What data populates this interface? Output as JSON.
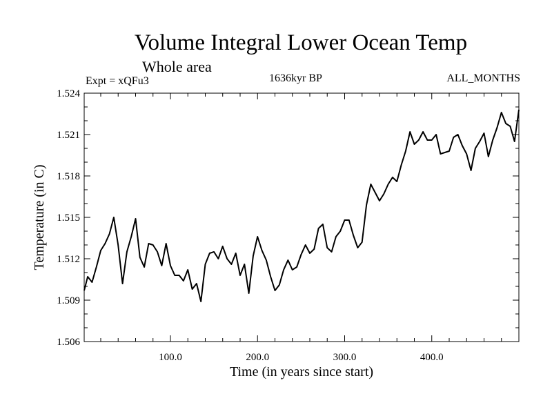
{
  "chart_data": {
    "type": "line",
    "title": "Volume Integral Lower Ocean Temp",
    "subtitle": "Whole area",
    "annotations": {
      "left": "Expt = xQFu3",
      "center": "1636kyr BP",
      "right": "ALL_MONTHS"
    },
    "xlabel": "Time (in years since start)",
    "ylabel": "Temperature (in C)",
    "xlim": [
      1,
      500
    ],
    "ylim": [
      1.506,
      1.524
    ],
    "xticks": [
      100,
      200,
      300,
      400
    ],
    "xtick_labels": [
      "100.0",
      "200.0",
      "300.0",
      "400.0"
    ],
    "yticks": [
      1.506,
      1.509,
      1.512,
      1.515,
      1.518,
      1.521,
      1.524
    ],
    "ytick_labels": [
      "1.506",
      "1.509",
      "1.512",
      "1.515",
      "1.518",
      "1.521",
      "1.524"
    ],
    "line_color": "#000000",
    "series": [
      {
        "name": "Volume Integral Lower Ocean Temp",
        "x": [
          1,
          5,
          10,
          15,
          20,
          25,
          30,
          35,
          40,
          45,
          50,
          55,
          60,
          65,
          70,
          75,
          80,
          85,
          90,
          95,
          100,
          105,
          110,
          115,
          120,
          125,
          130,
          135,
          140,
          145,
          150,
          155,
          160,
          165,
          170,
          175,
          180,
          185,
          190,
          195,
          200,
          205,
          210,
          215,
          220,
          225,
          230,
          235,
          240,
          245,
          250,
          255,
          260,
          265,
          270,
          275,
          280,
          285,
          290,
          295,
          300,
          305,
          310,
          315,
          320,
          325,
          330,
          335,
          340,
          345,
          350,
          355,
          360,
          365,
          370,
          375,
          380,
          385,
          390,
          395,
          400,
          405,
          410,
          415,
          420,
          425,
          430,
          435,
          440,
          445,
          450,
          455,
          460,
          465,
          470,
          475,
          480,
          485,
          490,
          495,
          500
        ],
        "values": [
          1.5097,
          1.5107,
          1.5103,
          1.5114,
          1.5126,
          1.5131,
          1.5138,
          1.515,
          1.513,
          1.5102,
          1.5125,
          1.5136,
          1.5149,
          1.5121,
          1.5114,
          1.5131,
          1.513,
          1.5125,
          1.5115,
          1.5131,
          1.5115,
          1.5108,
          1.5108,
          1.5104,
          1.5112,
          1.5098,
          1.5102,
          1.5089,
          1.5116,
          1.5124,
          1.5125,
          1.512,
          1.5129,
          1.512,
          1.5116,
          1.5124,
          1.5108,
          1.5116,
          1.5095,
          1.5122,
          1.5136,
          1.5126,
          1.5119,
          1.5107,
          1.5097,
          1.5101,
          1.5112,
          1.5119,
          1.5112,
          1.5114,
          1.5123,
          1.513,
          1.5124,
          1.5127,
          1.5142,
          1.5145,
          1.5128,
          1.5125,
          1.5136,
          1.514,
          1.5148,
          1.5148,
          1.5137,
          1.5128,
          1.5132,
          1.5159,
          1.5174,
          1.5168,
          1.5162,
          1.5167,
          1.5174,
          1.5179,
          1.5176,
          1.5188,
          1.5198,
          1.5212,
          1.5203,
          1.5206,
          1.5212,
          1.5206,
          1.5206,
          1.521,
          1.5196,
          1.5197,
          1.5198,
          1.5208,
          1.521,
          1.5202,
          1.5196,
          1.5184,
          1.52,
          1.5205,
          1.5211,
          1.5194,
          1.5206,
          1.5215,
          1.5226,
          1.5218,
          1.5216,
          1.5205,
          1.5228
        ]
      }
    ]
  }
}
